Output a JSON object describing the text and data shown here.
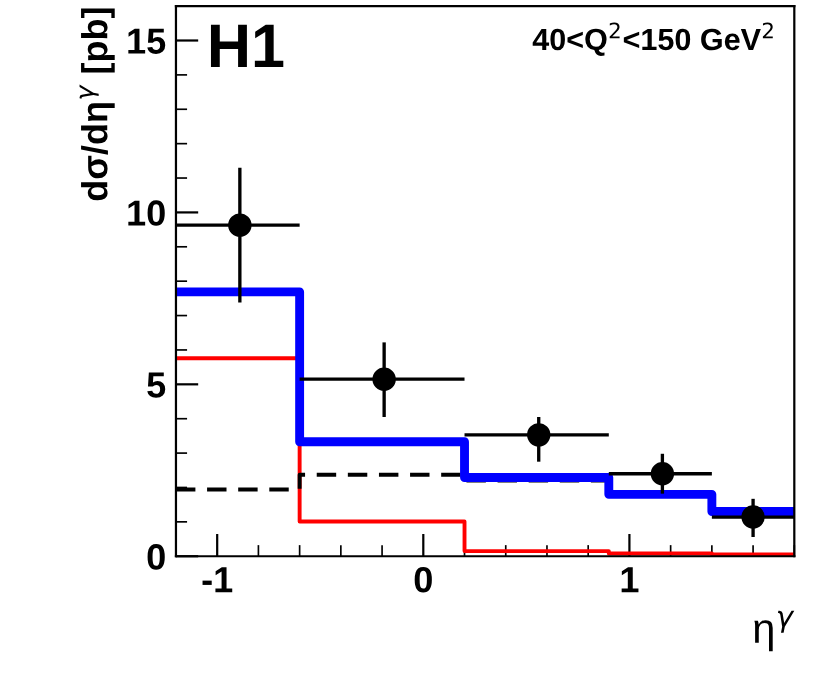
{
  "chart_data": {
    "type": "step",
    "xlabel": "η$^{γ}$",
    "ylabel": "dσ/dη$^{γ}$ [pb]",
    "annotations": [
      "H1",
      "40<Q$^{2}$<150 GeV$^{2}$"
    ],
    "xlim": [
      -1.2,
      1.8
    ],
    "xticks": [
      -1,
      0,
      1
    ],
    "ylim": [
      0,
      16
    ],
    "yticks": [
      0,
      5,
      10,
      15
    ],
    "grid": false,
    "legend": false,
    "series": [
      {
        "color": "#ff0000",
        "line_style": "solid",
        "x": [
          -1.2,
          -0.6,
          0.2,
          0.9,
          1.4,
          1.8
        ],
        "values": [
          5.76,
          1.01,
          0.15,
          0.08,
          0.05,
          0.05
        ]
      },
      {
        "color": "#000000",
        "line_style": "dashed",
        "x": [
          -1.2,
          -0.6,
          0.2,
          0.9
        ],
        "values": [
          1.94,
          2.37,
          2.2,
          2.2
        ]
      },
      {
        "color": "#0000ff",
        "line_style": "solid",
        "x": [
          -1.2,
          -0.6,
          0.2,
          0.9,
          1.4,
          1.8
        ],
        "values": [
          7.69,
          3.33,
          2.29,
          1.8,
          1.3,
          1.3
        ]
      },
      {
        "type": "scatter",
        "color": "#000000",
        "marker": "circle",
        "x": [
          -0.89,
          -0.19,
          0.56,
          1.16,
          1.6
        ],
        "values": [
          9.63,
          5.15,
          3.53,
          2.4,
          1.14
        ],
        "errors": [
          [
            7.38,
            11.3
          ],
          [
            4.05,
            6.22
          ],
          [
            2.75,
            4.05
          ],
          [
            1.82,
            2.98
          ],
          [
            0.56,
            1.67
          ]
        ],
        "xerrors": [
          [
            -1.2,
            -0.6
          ],
          [
            -0.6,
            0.2
          ],
          [
            0.2,
            0.9
          ],
          [
            0.9,
            1.4
          ],
          [
            1.4,
            1.8
          ]
        ]
      }
    ]
  }
}
